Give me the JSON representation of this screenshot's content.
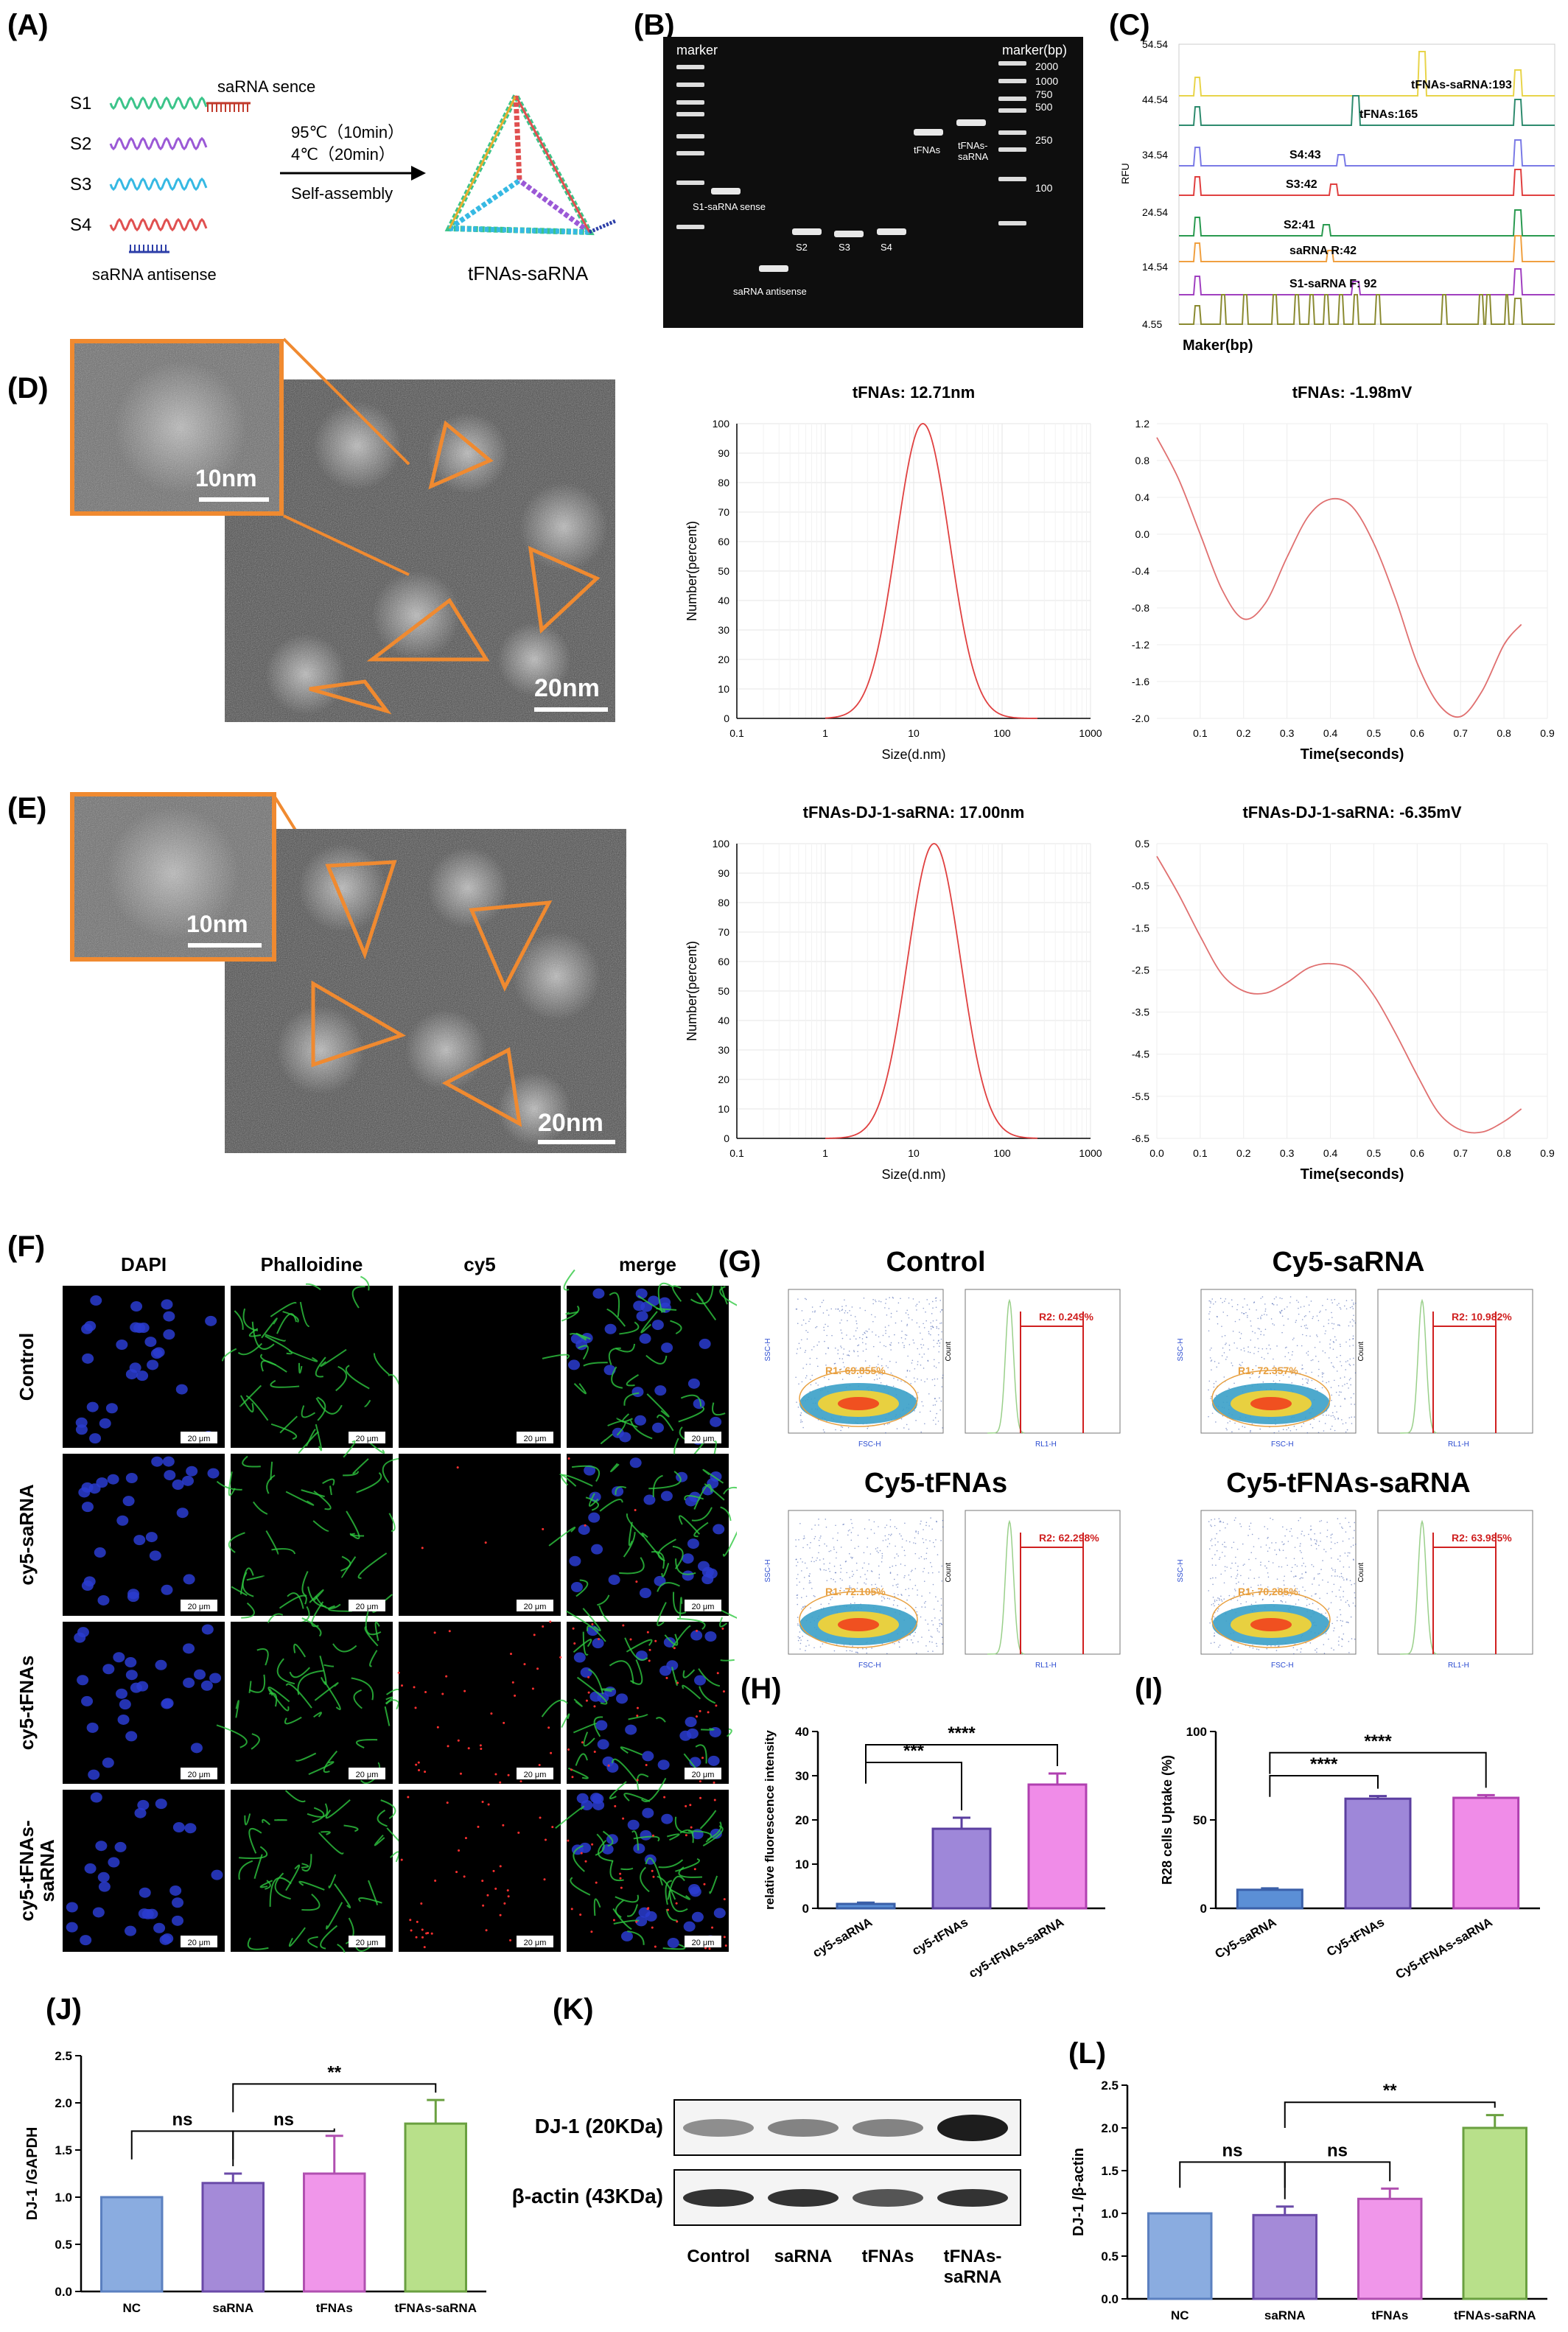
{
  "panels": {
    "A": {
      "label": "(A)",
      "strands": [
        "S1",
        "S2",
        "S3",
        "S4"
      ],
      "sense": "saRNA sence",
      "antisense": "saRNA antisense",
      "cond1": "95℃（10min）",
      "cond2": "4℃（20min）",
      "method": "Self-assembly",
      "product": "tFNAs-saRNA",
      "colors": {
        "S1": "#3cc48a",
        "S2": "#9b59d6",
        "S3": "#36b9e3",
        "S4": "#e05050",
        "saRNA": "#c0392b",
        "anti": "#2c3ea8"
      }
    },
    "B": {
      "label": "(B)",
      "marker_left": "marker",
      "marker_right": "marker(bp)",
      "bp": [
        "2000",
        "1000",
        "750",
        "500",
        "250",
        "100"
      ],
      "lanes": [
        "S1-saRNA sense",
        "saRNA antisense",
        "S2",
        "S3",
        "S4",
        "tFNAs",
        "tFNAs-\nsaRNA"
      ]
    },
    "C": {
      "label": "(C)",
      "ylabel": "RFU",
      "xlabel": "Maker(bp)",
      "yticks": [
        "54.54",
        "44.54",
        "34.54",
        "24.54",
        "14.54",
        "4.55"
      ],
      "traces": [
        {
          "name": "tFNAs-saRNA:193",
          "color": "#e8d44a"
        },
        {
          "name": "tFNAs:165",
          "color": "#2e8b6e"
        },
        {
          "name": "S4:43",
          "color": "#7a7ae6"
        },
        {
          "name": "S3:42",
          "color": "#e04040"
        },
        {
          "name": "S2:41",
          "color": "#2a9a50"
        },
        {
          "name": "saRNA R:42",
          "color": "#f0a040"
        },
        {
          "name": "S1-saRNA F: 92",
          "color": "#a040c0"
        },
        {
          "name": "",
          "color": "#8a8a30"
        }
      ]
    },
    "D": {
      "label": "(D)",
      "scale_inset": "10nm",
      "scale_main": "20nm",
      "dls_title": "tFNAs: 12.71nm",
      "zeta_title": "tFNAs: -1.98mV"
    },
    "E": {
      "label": "(E)",
      "scale_inset": "10nm",
      "scale_main": "20nm",
      "dls_title": "tFNAs-DJ-1-saRNA: 17.00nm",
      "zeta_title": "tFNAs-DJ-1-saRNA: -6.35mV"
    },
    "F": {
      "label": "(F)",
      "cols": [
        "DAPI",
        "Phalloidine",
        "cy5",
        "merge"
      ],
      "rows": [
        "Control",
        "cy5-saRNA",
        "cy5-tFNAs",
        "cy5-tFNAs-saRNA"
      ],
      "scale": "20 μm"
    },
    "G": {
      "label": "(G)",
      "groups": [
        {
          "title": "Control",
          "r1": "R1: 69.855%",
          "r2": "R2: 0.249%"
        },
        {
          "title": "Cy5-saRNA",
          "r1": "R1: 72.357%",
          "r2": "R2: 10.982%"
        },
        {
          "title": "Cy5-tFNAs",
          "r1": "R1: 72.105%",
          "r2": "R2: 62.298%"
        },
        {
          "title": "Cy5-tFNAs-saRNA",
          "r1": "R1: 70.285%",
          "r2": "R2: 63.985%"
        }
      ],
      "ssc": "SSC-H",
      "fsc": "FSC-H",
      "count": "Count",
      "rl1": "RL1-H"
    },
    "H": {
      "label": "(H)"
    },
    "I": {
      "label": "(I)"
    },
    "J": {
      "label": "(J)"
    },
    "K": {
      "label": "(K)",
      "rows": [
        "DJ-1 (20KDa)",
        "β-actin (43KDa)"
      ],
      "lanes": [
        "Control",
        "saRNA",
        "tFNAs",
        "tFNAs-\nsaRNA"
      ]
    },
    "L": {
      "label": "(L)"
    }
  },
  "chart_data": [
    {
      "id": "dls_D",
      "type": "line",
      "title": "tFNAs: 12.71nm",
      "xlabel": "Size(d.nm)",
      "ylabel": "Number(percent)",
      "xscale": "log",
      "xlim": [
        0.1,
        1000
      ],
      "ylim": [
        0,
        100
      ],
      "xticks": [
        "0.1",
        "1",
        "10",
        "100",
        "1000"
      ],
      "yticks": [
        "0",
        "10",
        "20",
        "30",
        "40",
        "50",
        "60",
        "70",
        "80",
        "90",
        "100"
      ],
      "peak": 12.71,
      "log_sigma": 0.3
    },
    {
      "id": "zeta_D",
      "type": "line",
      "title": "tFNAs: -1.98mV",
      "xlabel": "Time(seconds)",
      "xlim": [
        0,
        0.9
      ],
      "ylim": [
        -2.0,
        1.2
      ],
      "xticks": [
        "0.1",
        "0.2",
        "0.3",
        "0.4",
        "0.5",
        "0.6",
        "0.7",
        "0.8",
        "0.9"
      ],
      "yticks": [
        "1.2",
        "0.8",
        "0.4",
        "0.0",
        "-0.4",
        "-0.8",
        "-1.2",
        "-1.6",
        "-2.0"
      ],
      "x": [
        0.0,
        0.05,
        0.1,
        0.15,
        0.2,
        0.25,
        0.3,
        0.35,
        0.4,
        0.45,
        0.5,
        0.55,
        0.6,
        0.65,
        0.7,
        0.75,
        0.8,
        0.84
      ],
      "y": [
        1.05,
        0.6,
        0.0,
        -0.6,
        -0.92,
        -0.75,
        -0.25,
        0.2,
        0.38,
        0.3,
        -0.1,
        -0.7,
        -1.4,
        -1.85,
        -1.98,
        -1.7,
        -1.2,
        -0.98
      ]
    },
    {
      "id": "dls_E",
      "type": "line",
      "title": "tFNAs-DJ-1-saRNA: 17.00nm",
      "xlabel": "Size(d.nm)",
      "ylabel": "Number(percent)",
      "xscale": "log",
      "xlim": [
        0.1,
        1000
      ],
      "ylim": [
        0,
        100
      ],
      "xticks": [
        "0.1",
        "1",
        "10",
        "100",
        "1000"
      ],
      "yticks": [
        "0",
        "10",
        "20",
        "30",
        "40",
        "50",
        "60",
        "70",
        "80",
        "90",
        "100"
      ],
      "peak": 17.0,
      "log_sigma": 0.3
    },
    {
      "id": "zeta_E",
      "type": "line",
      "title": "tFNAs-DJ-1-saRNA: -6.35mV",
      "xlabel": "Time(seconds)",
      "xlim": [
        0,
        0.9
      ],
      "ylim": [
        -6.5,
        0.5
      ],
      "xticks": [
        "0.0",
        "0.1",
        "0.2",
        "0.3",
        "0.4",
        "0.5",
        "0.6",
        "0.7",
        "0.8",
        "0.9"
      ],
      "yticks": [
        "0.5",
        "-0.5",
        "-1.5",
        "-2.5",
        "-3.5",
        "-4.5",
        "-5.5",
        "-6.5"
      ],
      "x": [
        0.0,
        0.05,
        0.1,
        0.15,
        0.2,
        0.25,
        0.3,
        0.35,
        0.4,
        0.45,
        0.5,
        0.55,
        0.6,
        0.65,
        0.7,
        0.75,
        0.8,
        0.84
      ],
      "y": [
        0.2,
        -0.7,
        -1.7,
        -2.6,
        -3.0,
        -3.05,
        -2.8,
        -2.45,
        -2.35,
        -2.5,
        -3.1,
        -4.0,
        -5.0,
        -5.9,
        -6.3,
        -6.35,
        -6.1,
        -5.8
      ]
    },
    {
      "id": "H",
      "type": "bar",
      "ylabel": "relative fluorescence intensity",
      "categories": [
        "cy5-saRNA",
        "cy5-tFNAs",
        "cy5-tFNAs-saRNA"
      ],
      "values": [
        1,
        18,
        28
      ],
      "errors": [
        0.3,
        2.5,
        2.5
      ],
      "ylim": [
        0,
        40
      ],
      "yticks": [
        "0",
        "10",
        "20",
        "30",
        "40"
      ],
      "colors": [
        "#5b8fd6",
        "#9e87d9",
        "#f08ce8"
      ],
      "edges": [
        "#3a5fa8",
        "#5b3fa0",
        "#b040b0"
      ],
      "sig": [
        {
          "a": 0,
          "b": 1,
          "text": "***",
          "y": 33
        },
        {
          "a": 0,
          "b": 2,
          "text": "****",
          "y": 37
        }
      ]
    },
    {
      "id": "I",
      "type": "bar",
      "ylabel": "R28 cells Uptake (%)",
      "categories": [
        "Cy5-saRNA",
        "Cy5-tFNAs",
        "Cy5-tFNAs-saRNA"
      ],
      "values": [
        10.5,
        62,
        62.5
      ],
      "errors": [
        0.8,
        1.5,
        1.5
      ],
      "ylim": [
        0,
        100
      ],
      "yticks": [
        "0",
        "50",
        "100"
      ],
      "colors": [
        "#5b8fd6",
        "#9e87d9",
        "#f08ce8"
      ],
      "edges": [
        "#3a5fa8",
        "#5b3fa0",
        "#b040b0"
      ],
      "sig": [
        {
          "a": 0,
          "b": 1,
          "text": "****",
          "y": 75
        },
        {
          "a": 0,
          "b": 2,
          "text": "****",
          "y": 88
        }
      ]
    },
    {
      "id": "J",
      "type": "bar",
      "ylabel": "DJ-1 /GAPDH",
      "categories": [
        "NC",
        "saRNA",
        "tFNAs",
        "tFNAs-saRNA"
      ],
      "values": [
        1.0,
        1.15,
        1.25,
        1.78
      ],
      "errors": [
        0,
        0.1,
        0.4,
        0.25
      ],
      "ylim": [
        0,
        2.5
      ],
      "yticks": [
        "0.0",
        "0.5",
        "1.0",
        "1.5",
        "2.0",
        "2.5"
      ],
      "colors": [
        "#8aace0",
        "#a48ad8",
        "#f096ea",
        "#b8e08a"
      ],
      "edges": [
        "#5b80c0",
        "#6a4aa8",
        "#b050b0",
        "#6aa040"
      ],
      "sig": [
        {
          "a": 0,
          "b": 1,
          "text": "ns",
          "y": 1.7
        },
        {
          "a": 1,
          "b": 2,
          "text": "ns",
          "y": 1.7
        },
        {
          "a": 1,
          "b": 3,
          "text": "**",
          "y": 2.2
        }
      ]
    },
    {
      "id": "L",
      "type": "bar",
      "ylabel": "DJ-1 /β-actin",
      "categories": [
        "NC",
        "saRNA",
        "tFNAs",
        "tFNAs-saRNA"
      ],
      "values": [
        1.0,
        0.98,
        1.17,
        2.0
      ],
      "errors": [
        0,
        0.1,
        0.12,
        0.15
      ],
      "ylim": [
        0,
        2.5
      ],
      "yticks": [
        "0.0",
        "0.5",
        "1.0",
        "1.5",
        "2.0",
        "2.5"
      ],
      "colors": [
        "#8aace0",
        "#a48ad8",
        "#f096ea",
        "#b8e08a"
      ],
      "edges": [
        "#5b80c0",
        "#6a4aa8",
        "#b050b0",
        "#6aa040"
      ],
      "sig": [
        {
          "a": 0,
          "b": 1,
          "text": "ns",
          "y": 1.6
        },
        {
          "a": 1,
          "b": 2,
          "text": "ns",
          "y": 1.6
        },
        {
          "a": 1,
          "b": 3,
          "text": "**",
          "y": 2.3
        }
      ]
    }
  ]
}
